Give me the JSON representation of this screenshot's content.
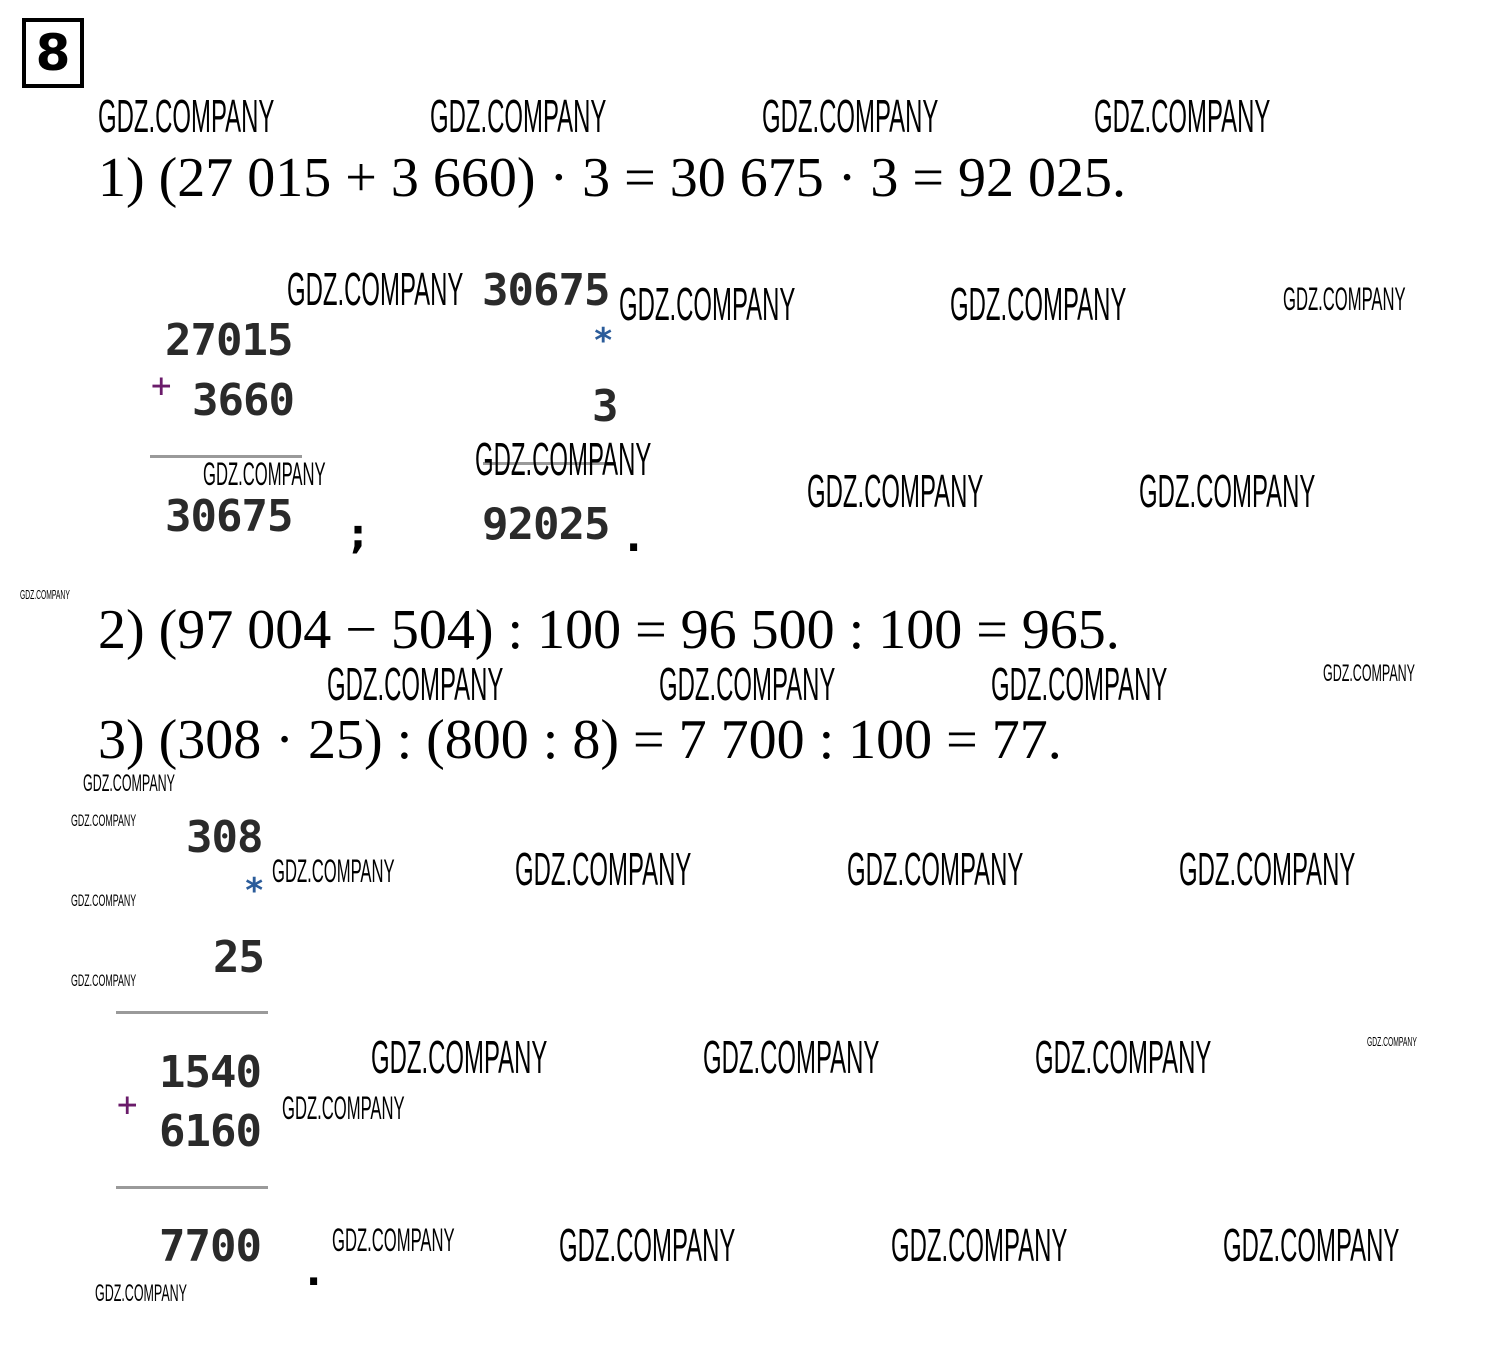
{
  "task_number": "8",
  "watermark_text": "GDZ.COMPANY",
  "equations": [
    "1) (27 015 + 3 660) · 3 = 30 675 · 3 = 92 025.",
    "2) (97 004 − 504) : 100 = 96 500 : 100 = 965.",
    "3) (308 · 25) : (800 : 8) = 7 700 : 100 = 77."
  ],
  "addition_1": {
    "a": "27015",
    "b": "3660",
    "op": "+",
    "result": "30675",
    "end": ";"
  },
  "multiplication_1": {
    "a": "30675",
    "b": "3",
    "op": "*",
    "result": "92025",
    "end": "."
  },
  "multiplication_3": {
    "a": "308",
    "b": "25",
    "op": "*",
    "partial1": "1540",
    "partial2": "6160",
    "op2": "+",
    "result": "7700",
    "end": "."
  },
  "colors": {
    "plus": "#6a1b6a",
    "asterisk": "#2b5c9a",
    "digits": "#2a2a2a"
  }
}
